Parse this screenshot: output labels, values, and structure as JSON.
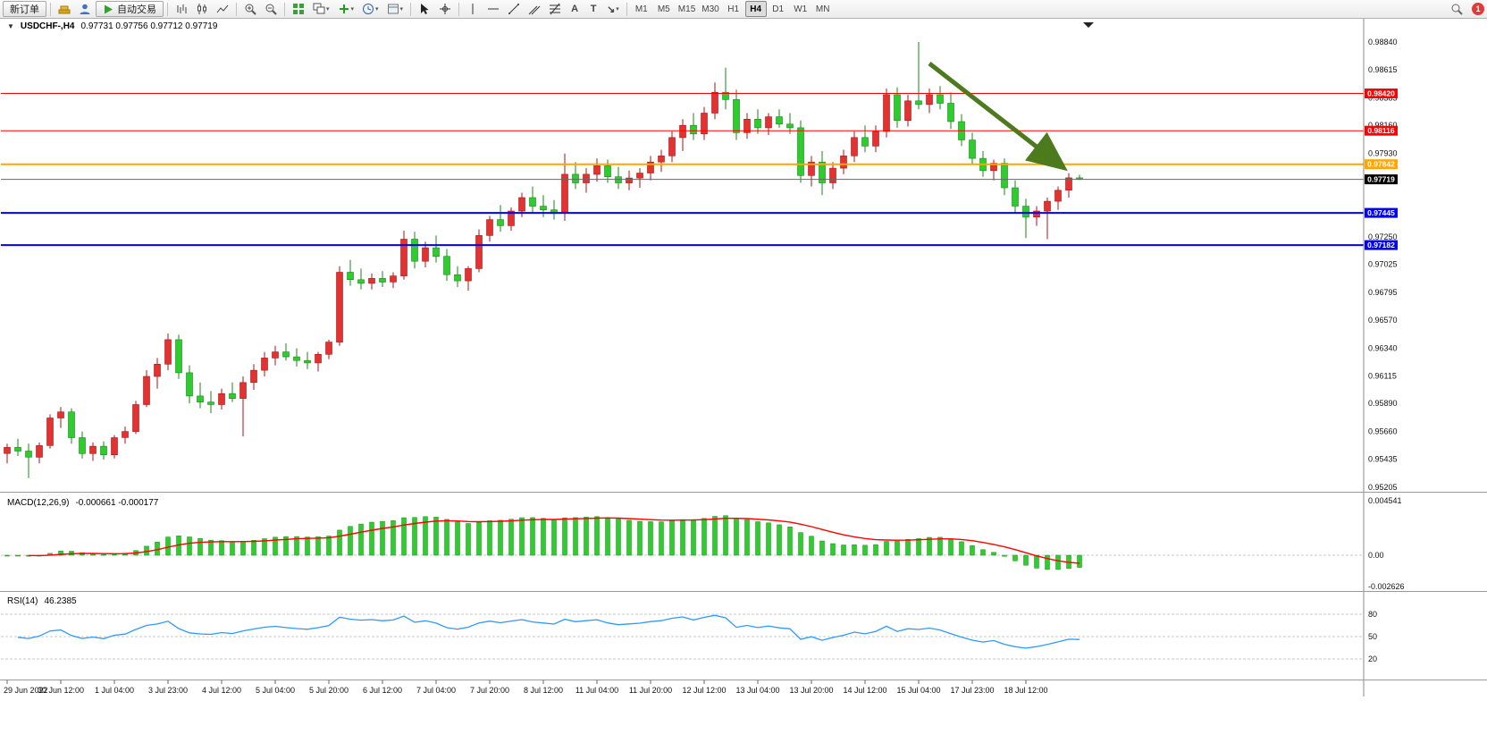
{
  "toolbar": {
    "new_order_label": "新订单",
    "auto_trading_label": "自动交易",
    "timeframes": [
      "M1",
      "M5",
      "M15",
      "M30",
      "H1",
      "H4",
      "D1",
      "W1",
      "MN"
    ],
    "active_timeframe": "H4",
    "notification_count": "1"
  },
  "chart_data": [
    {
      "type": "candlestick",
      "title": "USDCHF-,H4",
      "ohlc_display": "0.97731 0.97756 0.97712 0.97719",
      "ylim": [
        0.9517,
        0.9903
      ],
      "y_axis_labels": [
        "0.98840",
        "0.98615",
        "0.98385",
        "0.98160",
        "0.97930",
        "0.97705",
        "0.97475",
        "0.97250",
        "0.97025",
        "0.96795",
        "0.96570",
        "0.96340",
        "0.96115",
        "0.95890",
        "0.95660",
        "0.95435",
        "0.95205"
      ],
      "x_axis_labels": [
        {
          "i": 0,
          "t": "29 Jun 2022"
        },
        {
          "i": 5,
          "t": "30 Jun 12:00"
        },
        {
          "i": 10,
          "t": "1 Jul 04:00"
        },
        {
          "i": 15,
          "t": "3 Jul 23:00"
        },
        {
          "i": 20,
          "t": "4 Jul 12:00"
        },
        {
          "i": 25,
          "t": "5 Jul 04:00"
        },
        {
          "i": 30,
          "t": "5 Jul 20:00"
        },
        {
          "i": 35,
          "t": "6 Jul 12:00"
        },
        {
          "i": 40,
          "t": "7 Jul 04:00"
        },
        {
          "i": 45,
          "t": "7 Jul 20:00"
        },
        {
          "i": 50,
          "t": "8 Jul 12:00"
        },
        {
          "i": 55,
          "t": "11 Jul 04:00"
        },
        {
          "i": 60,
          "t": "11 Jul 20:00"
        },
        {
          "i": 65,
          "t": "12 Jul 12:00"
        },
        {
          "i": 70,
          "t": "13 Jul 04:00"
        },
        {
          "i": 75,
          "t": "13 Jul 20:00"
        },
        {
          "i": 80,
          "t": "14 Jul 12:00"
        },
        {
          "i": 85,
          "t": "15 Jul 04:00"
        },
        {
          "i": 90,
          "t": "17 Jul 23:00"
        },
        {
          "i": 95,
          "t": "18 Jul 12:00"
        }
      ],
      "h_lines": [
        {
          "price": 0.9842,
          "color": "#FF0000",
          "width": 1,
          "badge": "0.98420"
        },
        {
          "price": 0.98116,
          "color": "#FF0000",
          "width": 1,
          "badge": "0.98116"
        },
        {
          "price": 0.97842,
          "color": "#FFA500",
          "width": 2,
          "badge": "0.97842"
        },
        {
          "price": 0.97445,
          "color": "#0000FF",
          "width": 2,
          "badge": "0.97445"
        },
        {
          "price": 0.97182,
          "color": "#0000FF",
          "width": 2,
          "badge": "0.97182"
        },
        {
          "price": 0.97719,
          "color": "#666666",
          "width": 1,
          "badge": "0.97719",
          "current": true
        }
      ],
      "annotations": [
        {
          "type": "arrow",
          "from": [
            1040,
            50
          ],
          "to": [
            1183,
            161
          ],
          "color": "#4c7a1d"
        }
      ],
      "colors": {
        "bull": "#e23232",
        "bear": "#2fcc2f",
        "bull_edge": "#a81414",
        "bear_edge": "#148814"
      },
      "candles": [
        [
          0.9548,
          0.9556,
          0.954,
          0.9553
        ],
        [
          0.9553,
          0.956,
          0.9546,
          0.955
        ],
        [
          0.955,
          0.9556,
          0.9528,
          0.9545
        ],
        [
          0.9545,
          0.9557,
          0.954,
          0.95545
        ],
        [
          0.95545,
          0.958,
          0.9552,
          0.9577
        ],
        [
          0.9577,
          0.9586,
          0.9569,
          0.9582
        ],
        [
          0.9582,
          0.9585,
          0.9556,
          0.9561
        ],
        [
          0.9561,
          0.9566,
          0.9544,
          0.9548
        ],
        [
          0.9548,
          0.9557,
          0.9542,
          0.9554
        ],
        [
          0.9554,
          0.9558,
          0.9543,
          0.9547
        ],
        [
          0.9547,
          0.9563,
          0.9544,
          0.9561
        ],
        [
          0.9561,
          0.957,
          0.9556,
          0.9566
        ],
        [
          0.9566,
          0.9591,
          0.9564,
          0.9588
        ],
        [
          0.9588,
          0.9616,
          0.9586,
          0.9611
        ],
        [
          0.9611,
          0.9626,
          0.9601,
          0.9621
        ],
        [
          0.9621,
          0.9646,
          0.9616,
          0.9641
        ],
        [
          0.9641,
          0.9645,
          0.9609,
          0.9614
        ],
        [
          0.9614,
          0.962,
          0.9589,
          0.9595
        ],
        [
          0.9595,
          0.9606,
          0.9585,
          0.959
        ],
        [
          0.959,
          0.9599,
          0.9581,
          0.9588
        ],
        [
          0.9588,
          0.9601,
          0.9584,
          0.9597
        ],
        [
          0.9597,
          0.9606,
          0.959,
          0.9593
        ],
        [
          0.9593,
          0.9611,
          0.9562,
          0.9606
        ],
        [
          0.9606,
          0.9621,
          0.96,
          0.9616
        ],
        [
          0.9616,
          0.9631,
          0.9611,
          0.9626
        ],
        [
          0.9626,
          0.9636,
          0.962,
          0.9631
        ],
        [
          0.9631,
          0.9638,
          0.9624,
          0.9627
        ],
        [
          0.9627,
          0.9634,
          0.9619,
          0.9624
        ],
        [
          0.9624,
          0.9631,
          0.9617,
          0.9622
        ],
        [
          0.9622,
          0.9631,
          0.9615,
          0.9629
        ],
        [
          0.9629,
          0.9641,
          0.9625,
          0.9639
        ],
        [
          0.9639,
          0.9701,
          0.9636,
          0.9696
        ],
        [
          0.9696,
          0.9706,
          0.9685,
          0.969
        ],
        [
          0.969,
          0.9699,
          0.9682,
          0.9687
        ],
        [
          0.9687,
          0.9695,
          0.9682,
          0.9691
        ],
        [
          0.9691,
          0.9697,
          0.9684,
          0.9688
        ],
        [
          0.9688,
          0.9696,
          0.9683,
          0.9693
        ],
        [
          0.9693,
          0.973,
          0.969,
          0.9723
        ],
        [
          0.9723,
          0.9729,
          0.9699,
          0.9705
        ],
        [
          0.9705,
          0.9721,
          0.97,
          0.9716
        ],
        [
          0.9716,
          0.9726,
          0.9704,
          0.9709
        ],
        [
          0.9709,
          0.9715,
          0.9689,
          0.9694
        ],
        [
          0.9694,
          0.9701,
          0.9684,
          0.9689
        ],
        [
          0.9689,
          0.9701,
          0.9681,
          0.9699
        ],
        [
          0.9699,
          0.9731,
          0.9696,
          0.9726
        ],
        [
          0.9726,
          0.9742,
          0.9721,
          0.9739
        ],
        [
          0.9739,
          0.9751,
          0.9729,
          0.9734
        ],
        [
          0.9734,
          0.9749,
          0.973,
          0.9746
        ],
        [
          0.9746,
          0.9761,
          0.9741,
          0.9757
        ],
        [
          0.9757,
          0.9766,
          0.9744,
          0.975
        ],
        [
          0.975,
          0.9759,
          0.9741,
          0.9747
        ],
        [
          0.9747,
          0.9755,
          0.9739,
          0.9744
        ],
        [
          0.9744,
          0.9793,
          0.9738,
          0.9776
        ],
        [
          0.9776,
          0.9786,
          0.9764,
          0.9769
        ],
        [
          0.9769,
          0.9781,
          0.9761,
          0.9776
        ],
        [
          0.9776,
          0.9789,
          0.977,
          0.9783
        ],
        [
          0.9783,
          0.9788,
          0.9769,
          0.9774
        ],
        [
          0.9774,
          0.9782,
          0.9764,
          0.9769
        ],
        [
          0.9769,
          0.9779,
          0.9763,
          0.9773
        ],
        [
          0.9773,
          0.9781,
          0.9765,
          0.9777
        ],
        [
          0.9777,
          0.9791,
          0.9771,
          0.9786
        ],
        [
          0.9786,
          0.9796,
          0.9778,
          0.9791
        ],
        [
          0.9791,
          0.9811,
          0.9786,
          0.9806
        ],
        [
          0.9806,
          0.9821,
          0.9795,
          0.9816
        ],
        [
          0.9816,
          0.9826,
          0.9804,
          0.9809
        ],
        [
          0.9809,
          0.9831,
          0.9804,
          0.9826
        ],
        [
          0.9826,
          0.9851,
          0.9821,
          0.9843
        ],
        [
          0.9843,
          0.9863,
          0.9829,
          0.9837
        ],
        [
          0.9837,
          0.9845,
          0.9804,
          0.981
        ],
        [
          0.981,
          0.9826,
          0.9805,
          0.9821
        ],
        [
          0.9821,
          0.9829,
          0.9809,
          0.9814
        ],
        [
          0.9814,
          0.9826,
          0.9808,
          0.9823
        ],
        [
          0.9823,
          0.9829,
          0.9814,
          0.9817
        ],
        [
          0.9817,
          0.9826,
          0.9809,
          0.9814
        ],
        [
          0.9814,
          0.982,
          0.9769,
          0.9775
        ],
        [
          0.9775,
          0.9791,
          0.9766,
          0.9786
        ],
        [
          0.9786,
          0.9795,
          0.9759,
          0.9769
        ],
        [
          0.9769,
          0.9786,
          0.9764,
          0.9781
        ],
        [
          0.9781,
          0.9796,
          0.9776,
          0.9791
        ],
        [
          0.9791,
          0.9811,
          0.9786,
          0.9806
        ],
        [
          0.9806,
          0.9816,
          0.9794,
          0.9799
        ],
        [
          0.9799,
          0.9816,
          0.9794,
          0.9811
        ],
        [
          0.9811,
          0.9846,
          0.9806,
          0.9841
        ],
        [
          0.9841,
          0.9847,
          0.9814,
          0.982
        ],
        [
          0.982,
          0.9841,
          0.9815,
          0.9836
        ],
        [
          0.9836,
          0.9884,
          0.9829,
          0.9833
        ],
        [
          0.9833,
          0.9846,
          0.9826,
          0.9841
        ],
        [
          0.9841,
          0.9848,
          0.9829,
          0.9834
        ],
        [
          0.9834,
          0.9843,
          0.9813,
          0.9819
        ],
        [
          0.9819,
          0.9825,
          0.9799,
          0.9804
        ],
        [
          0.9804,
          0.981,
          0.9784,
          0.9789
        ],
        [
          0.9789,
          0.9795,
          0.9774,
          0.9779
        ],
        [
          0.9779,
          0.9788,
          0.9771,
          0.9785
        ],
        [
          0.9785,
          0.9789,
          0.9759,
          0.9765
        ],
        [
          0.9765,
          0.9771,
          0.9744,
          0.975
        ],
        [
          0.975,
          0.9756,
          0.9724,
          0.9741
        ],
        [
          0.9741,
          0.975,
          0.9734,
          0.9746
        ],
        [
          0.9746,
          0.9757,
          0.9723,
          0.9754
        ],
        [
          0.9754,
          0.9766,
          0.9747,
          0.9763
        ],
        [
          0.9763,
          0.9777,
          0.9757,
          0.97731
        ],
        [
          0.97731,
          0.97756,
          0.97712,
          0.97719
        ]
      ]
    },
    {
      "type": "macd",
      "label": "MACD(12,26,9)",
      "values_display": "-0.000661 -0.000177",
      "params": [
        12,
        26,
        9
      ],
      "y_axis_labels": [
        "0.004541",
        "0.00",
        "-0.002626"
      ],
      "colors": {
        "histogram": "#2fcc2f",
        "histogram_edge": "#149414",
        "signal": "#ff0000"
      }
    },
    {
      "type": "rsi",
      "label": "RSI(14)",
      "value_display": "46.2385",
      "period": 14,
      "levels": [
        80,
        50,
        20
      ],
      "y_axis_labels": [
        "80",
        "50",
        "20"
      ],
      "colors": {
        "line": "#2e9afe"
      }
    }
  ]
}
